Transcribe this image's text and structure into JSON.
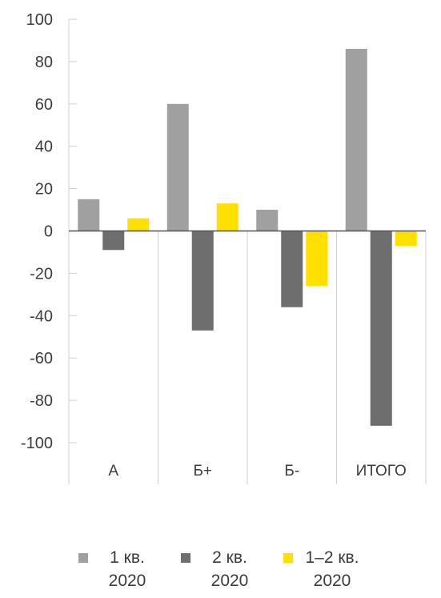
{
  "chart_data": {
    "type": "bar",
    "categories": [
      "А",
      "Б+",
      "Б-",
      "ИТОГО"
    ],
    "series": [
      {
        "name": "1 кв. 2020",
        "values": [
          15,
          60,
          10,
          86
        ],
        "color": "#a0a0a0"
      },
      {
        "name": "2 кв. 2020",
        "values": [
          -9,
          -47,
          -36,
          -92
        ],
        "color": "#6e6e6e"
      },
      {
        "name": "1-2 кв. 2020",
        "values": [
          6,
          13,
          -26,
          -7
        ],
        "color": "#ffe000"
      }
    ],
    "ylim": [
      -100,
      100
    ],
    "yticks": [
      "100",
      "80",
      "60",
      "40",
      "20",
      "0",
      "-20",
      "-40",
      "-60",
      "-80",
      "-100"
    ],
    "title": "",
    "xlabel": "",
    "ylabel": "",
    "grid": false,
    "legend_position": "bottom"
  },
  "legend": {
    "items": [
      {
        "label": "1 кв. 2020",
        "color": "#a0a0a0"
      },
      {
        "label": "2 кв. 2020",
        "color": "#6e6e6e"
      },
      {
        "label": "1–2 кв. 2020",
        "color": "#ffe000"
      }
    ]
  }
}
